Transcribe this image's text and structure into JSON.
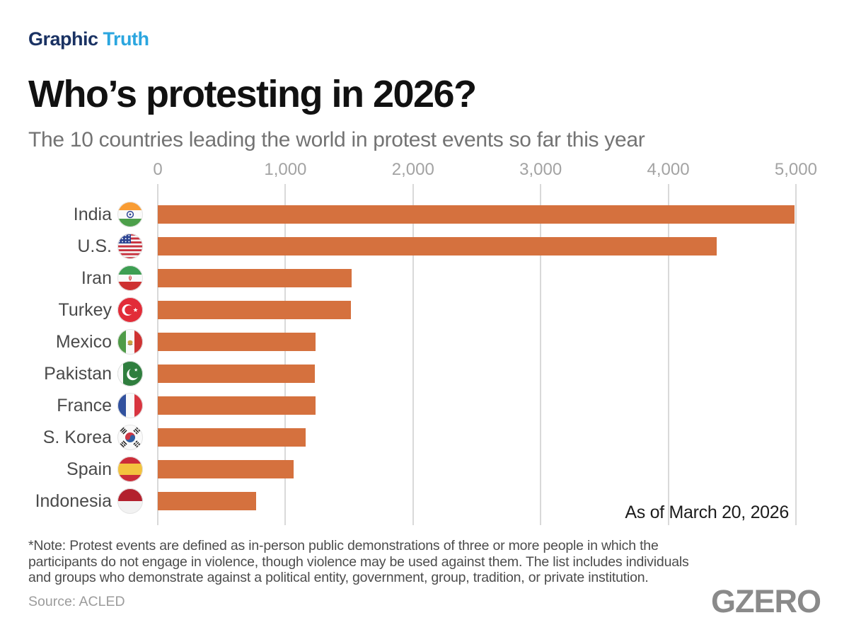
{
  "brand": {
    "part1": "Graphic",
    "part2": "Truth"
  },
  "title": "Who’s protesting in 2026?",
  "subtitle": "The 10 countries leading the world in protest events so far this year",
  "annotation": "As of March 20, 2026",
  "note_lines": [
    "*Note: Protest events are defined as in-person public demonstrations of three or more people in which the",
    "participants do not engage in violence, though violence may be used against them. The list includes individuals",
    "and groups who demonstrate against a political entity, government, group, tradition, or private institution."
  ],
  "source": "Source: ACLED",
  "logo": "GZERO",
  "colors": {
    "brand_navy": "#1A3263",
    "brand_blue": "#2BA6DF",
    "bar_orange": "#D5713E",
    "gridline_gray": "#D9D9D9",
    "tick_gray": "#A3A3A3",
    "label_gray": "#4A4A4A",
    "logo_gray": "#8A8A8A"
  },
  "chart_data": {
    "type": "bar",
    "orientation": "horizontal",
    "title": "Who’s protesting in 2026?",
    "subtitle": "The 10 countries leading the world in protest events so far this year",
    "categories": [
      "India",
      "U.S.",
      "Iran",
      "Turkey",
      "Mexico",
      "Pakistan",
      "France",
      "S. Korea",
      "Spain",
      "Indonesia"
    ],
    "values": [
      4990,
      4380,
      1520,
      1515,
      1235,
      1230,
      1235,
      1160,
      1065,
      770
    ],
    "flag_icons": [
      "india-flag-icon",
      "us-flag-icon",
      "iran-flag-icon",
      "turkey-flag-icon",
      "mexico-flag-icon",
      "pakistan-flag-icon",
      "france-flag-icon",
      "south-korea-flag-icon",
      "spain-flag-icon",
      "indonesia-flag-icon"
    ],
    "flag_keys": [
      "india",
      "us",
      "iran",
      "turkey",
      "mexico",
      "pakistan",
      "france",
      "skorea",
      "spain",
      "indonesia"
    ],
    "x_tick_values": [
      0,
      1000,
      2000,
      3000,
      4000,
      5000
    ],
    "x_tick_labels": [
      "0",
      "1,000",
      "2,000",
      "3,000",
      "4,000",
      "5,000"
    ],
    "xlim": [
      0,
      5200
    ],
    "xlabel": "",
    "ylabel": "",
    "bar_color": "#D5713E",
    "gridline_color": "#D9D9D9",
    "grid": true,
    "legend": false,
    "annotation": "As of March 20, 2026"
  }
}
